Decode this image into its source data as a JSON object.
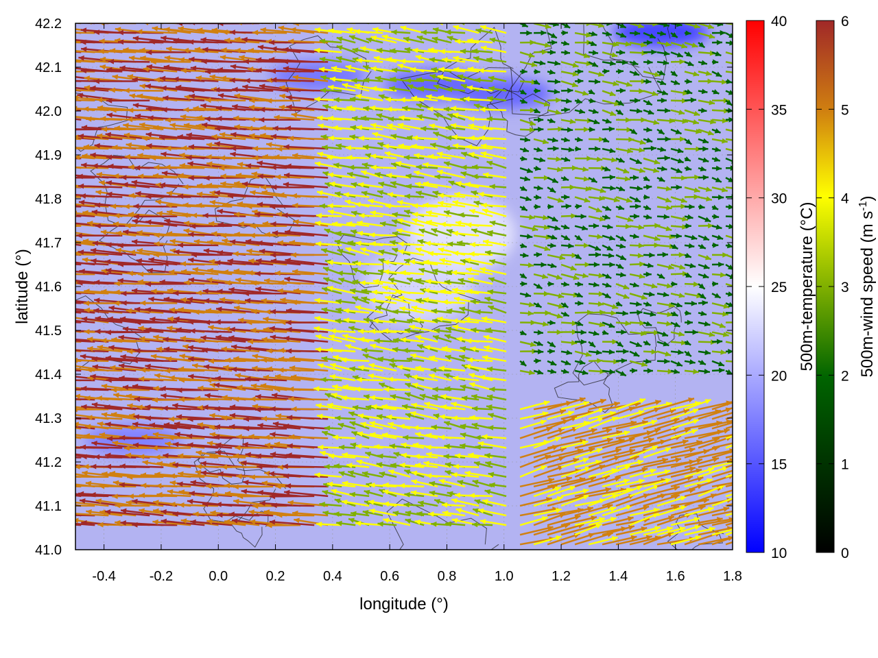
{
  "chart_data": {
    "type": "heatmap",
    "xlabel": "longitude (°)",
    "ylabel": "latitude (°)",
    "xlim": [
      -0.5,
      1.8
    ],
    "ylim": [
      41.0,
      42.2
    ],
    "xticks": [
      -0.4,
      -0.2,
      0.0,
      0.2,
      0.4,
      0.6,
      0.8,
      1.0,
      1.2,
      1.4,
      1.6,
      1.8
    ],
    "yticks": [
      41.0,
      41.1,
      41.2,
      41.3,
      41.4,
      41.5,
      41.6,
      41.7,
      41.8,
      41.9,
      42.0,
      42.1,
      42.2
    ],
    "xtick_labels": [
      "-0.4",
      "-0.2",
      "0.0",
      "0.2",
      "0.4",
      "0.6",
      "0.8",
      "1.0",
      "1.2",
      "1.4",
      "1.6",
      "1.8"
    ],
    "ytick_labels": [
      "41.0",
      "41.1",
      "41.2",
      "41.3",
      "41.4",
      "41.5",
      "41.6",
      "41.7",
      "41.8",
      "41.9",
      "42.0",
      "42.1",
      "42.2"
    ],
    "grid": true,
    "temperature_colorbar": {
      "label": "500m-temperature (°C)",
      "range": [
        10,
        40
      ],
      "ticks": [
        10,
        15,
        20,
        25,
        30,
        35,
        40
      ],
      "tick_labels": [
        "10",
        "15",
        "20",
        "25",
        "30",
        "35",
        "40"
      ],
      "colors": [
        "#0000ff",
        "#ffffff",
        "#ff0000"
      ]
    },
    "wind_colorbar": {
      "label": "500m-wind speed (m s",
      "label_sup": "-1",
      "label_end": ")",
      "range": [
        0,
        6
      ],
      "ticks": [
        0,
        1,
        2,
        3,
        4,
        5,
        6
      ],
      "tick_labels": [
        "0",
        "1",
        "2",
        "3",
        "4",
        "5",
        "6"
      ],
      "colors": [
        "#000000",
        "#006400",
        "#80b000",
        "#ffff00",
        "#d08010",
        "#a02828"
      ]
    },
    "temperature_field": {
      "typical_range": [
        16,
        23
      ],
      "cold_spots": [
        {
          "lon": 1.55,
          "lat": 42.18,
          "t": 14
        },
        {
          "lon": 0.75,
          "lat": 42.06,
          "t": 16
        },
        {
          "lon": 0.35,
          "lat": 42.08,
          "t": 17
        },
        {
          "lon": 1.0,
          "lat": 42.04,
          "t": 16
        },
        {
          "lon": -0.3,
          "lat": 41.25,
          "t": 17.5
        }
      ],
      "warm_spots": [
        {
          "lon": 0.85,
          "lat": 41.72,
          "t": 24
        },
        {
          "lon": 0.7,
          "lat": 41.6,
          "t": 23
        }
      ]
    },
    "wind_regions": [
      {
        "name": "west",
        "lon": [
          -0.5,
          0.4
        ],
        "lat": [
          41.05,
          42.2
        ],
        "u_ms": -5.3,
        "v_ms": 0.35,
        "speed_ms": 5.3
      },
      {
        "name": "center",
        "lon": [
          0.4,
          1.05
        ],
        "lat": [
          41.05,
          42.2
        ],
        "u_ms": -3.0,
        "v_ms": 0.5,
        "speed_ms": 3.0
      },
      {
        "name": "northeast",
        "lon": [
          1.05,
          1.8
        ],
        "lat": [
          41.4,
          42.2
        ],
        "u_ms": 1.6,
        "v_ms": -0.3,
        "speed_ms": 1.6
      },
      {
        "name": "southeast",
        "lon": [
          1.05,
          1.8
        ],
        "lat": [
          41.0,
          41.32
        ],
        "u_ms": 4.3,
        "v_ms": 1.2,
        "speed_ms": 4.4
      }
    ],
    "terrain_contours": "black contour lines"
  }
}
